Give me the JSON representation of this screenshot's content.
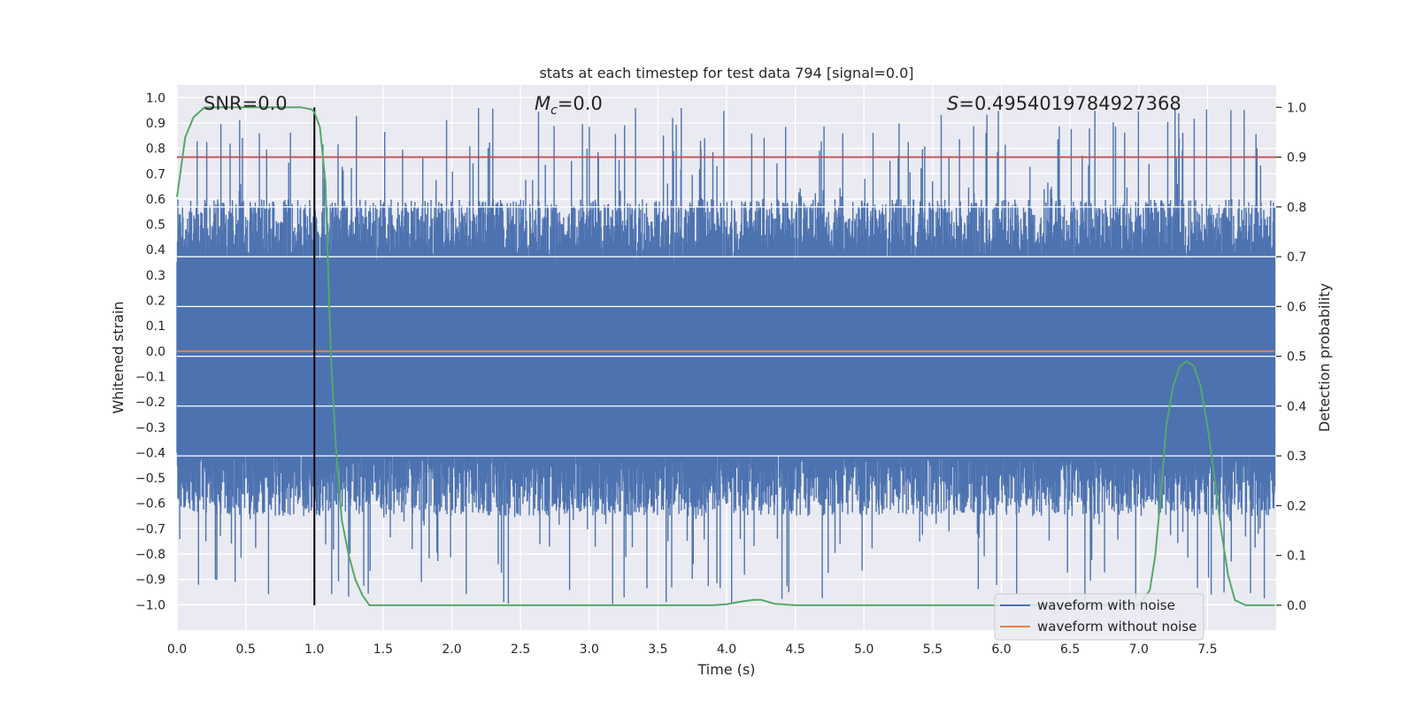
{
  "chart_data": {
    "type": "line",
    "title": "stats at each timestep for test data 794 [signal=0.0]",
    "xlabel": "Time (s)",
    "ylabel_left": "Whitened strain",
    "ylabel_right": "Detection probability",
    "xlim": [
      0.0,
      8.0
    ],
    "ylim_left": [
      -1.1,
      1.05
    ],
    "ylim_right": [
      -0.05,
      1.045
    ],
    "x_ticks": [
      0.0,
      0.5,
      1.0,
      1.5,
      2.0,
      2.5,
      3.0,
      3.5,
      4.0,
      4.5,
      5.0,
      5.5,
      6.0,
      6.5,
      7.0,
      7.5
    ],
    "x_tick_labels": [
      "0.0",
      "0.5",
      "1.0",
      "1.5",
      "2.0",
      "2.5",
      "3.0",
      "3.5",
      "4.0",
      "4.5",
      "5.0",
      "5.5",
      "6.0",
      "6.5",
      "7.0",
      "7.5"
    ],
    "y_left_ticks": [
      1.0,
      0.9,
      0.8,
      0.7,
      0.6,
      0.5,
      0.4,
      0.3,
      0.2,
      0.1,
      0.0,
      -0.1,
      -0.2,
      -0.3,
      -0.4,
      -0.5,
      -0.6,
      -0.7,
      -0.8,
      -0.9,
      -1.0
    ],
    "y_left_tick_labels": [
      "1.0",
      "0.9",
      "0.8",
      "0.7",
      "0.6",
      "0.5",
      "0.4",
      "0.3",
      "0.2",
      "0.1",
      "0.0",
      "−0.1",
      "−0.2",
      "−0.3",
      "−0.4",
      "−0.5",
      "−0.6",
      "−0.7",
      "−0.8",
      "−0.9",
      "−1.0"
    ],
    "y_right_ticks": [
      1.0,
      0.9,
      0.8,
      0.7,
      0.6,
      0.5,
      0.4,
      0.3,
      0.2,
      0.1,
      0.0
    ],
    "y_right_tick_labels": [
      "1.0",
      "0.9",
      "0.8",
      "0.7",
      "0.6",
      "0.5",
      "0.4",
      "0.3",
      "0.2",
      "0.1",
      "0.0"
    ],
    "annotations": {
      "snr": "SNR=0.0",
      "mc_symbol": "M",
      "mc_sub": "c",
      "mc_value": "=0.0",
      "s_symbol": "S",
      "s_value": "=0.4954019784927368"
    },
    "threshold_probability": 0.9,
    "marker_time": 1.0,
    "series": [
      {
        "name": "waveform with noise",
        "color": "#4c72b0",
        "axis": "left",
        "kind": "noise",
        "band_typical": [
          -0.4,
          0.35
        ],
        "peak_max": 0.96,
        "trough_min": -1.0
      },
      {
        "name": "waveform without noise",
        "color": "#dd8452",
        "axis": "left",
        "x": [
          0.0,
          7.99
        ],
        "y": [
          0.0,
          0.0
        ]
      },
      {
        "name": "detection probability",
        "color": "#55a868",
        "axis": "right",
        "x": [
          0.0,
          0.06,
          0.12,
          0.2,
          0.3,
          0.5,
          0.7,
          0.9,
          0.98,
          1.0,
          1.04,
          1.08,
          1.12,
          1.16,
          1.2,
          1.25,
          1.3,
          1.35,
          1.4,
          2.0,
          3.0,
          3.1,
          3.5,
          3.9,
          4.0,
          4.1,
          4.2,
          4.25,
          4.35,
          4.5,
          5.0,
          6.0,
          7.0,
          7.08,
          7.12,
          7.16,
          7.2,
          7.25,
          7.3,
          7.35,
          7.4,
          7.45,
          7.5,
          7.55,
          7.6,
          7.65,
          7.7,
          7.78,
          7.9,
          7.99
        ],
        "y": [
          0.82,
          0.94,
          0.98,
          1.0,
          1.0,
          1.0,
          1.0,
          1.0,
          0.996,
          0.99,
          0.96,
          0.85,
          0.5,
          0.3,
          0.17,
          0.1,
          0.05,
          0.02,
          0.0,
          0.0,
          0.0,
          0.0,
          0.0,
          0.0,
          0.002,
          0.007,
          0.011,
          0.011,
          0.003,
          0.0,
          0.0,
          0.0,
          0.0,
          0.03,
          0.1,
          0.22,
          0.36,
          0.44,
          0.48,
          0.49,
          0.48,
          0.44,
          0.36,
          0.26,
          0.15,
          0.06,
          0.01,
          0.0,
          0.0,
          0.0
        ]
      }
    ],
    "legend": {
      "location": "lower-right",
      "entries": [
        {
          "label": "waveform with noise",
          "color": "#4c72b0"
        },
        {
          "label": "waveform without noise",
          "color": "#dd8452"
        }
      ]
    },
    "threshold_color": "#c44e52",
    "marker_color": "#000000",
    "background_color": "#eaeaf2",
    "grid": true
  }
}
